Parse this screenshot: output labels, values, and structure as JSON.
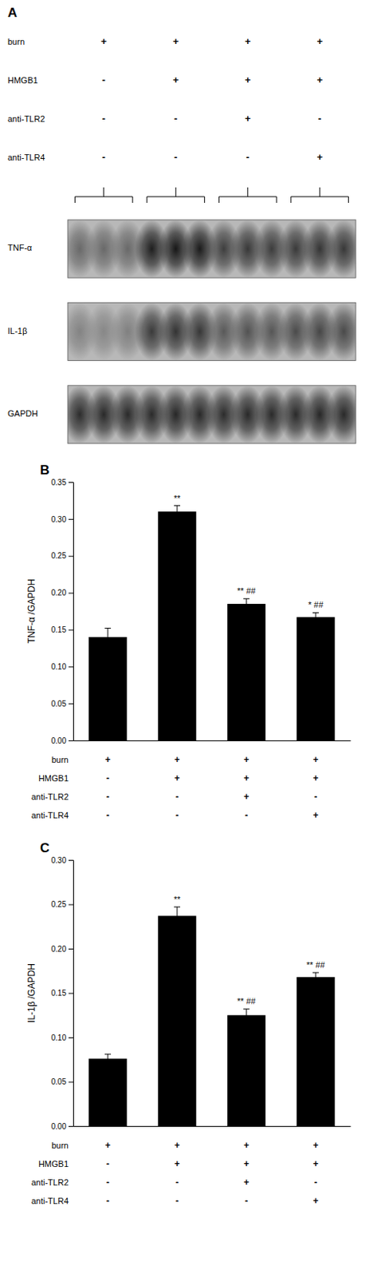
{
  "chart_data": [
    {
      "type": "heatmap",
      "title": "A",
      "rows": [
        "TNF-α",
        "IL-1β",
        "GAPDH"
      ],
      "cells": [
        [
          0.45,
          0.45,
          0.45,
          0.88,
          0.92,
          0.9,
          0.7,
          0.73,
          0.71,
          0.72,
          0.75,
          0.73
        ],
        [
          0.3,
          0.28,
          0.32,
          0.72,
          0.76,
          0.74,
          0.54,
          0.58,
          0.56,
          0.62,
          0.65,
          0.63
        ],
        [
          0.8,
          0.82,
          0.81,
          0.81,
          0.83,
          0.82,
          0.8,
          0.82,
          0.81,
          0.81,
          0.83,
          0.82
        ]
      ],
      "conditions": [
        {
          "name": "burn",
          "values": [
            "+",
            "+",
            "+",
            "+"
          ]
        },
        {
          "name": "HMGB1",
          "values": [
            "-",
            "+",
            "+",
            "+"
          ]
        },
        {
          "name": "anti-TLR2",
          "values": [
            "-",
            "-",
            "+",
            "-"
          ]
        },
        {
          "name": "anti-TLR4",
          "values": [
            "-",
            "-",
            "-",
            "+"
          ]
        }
      ]
    },
    {
      "type": "bar",
      "title": "B",
      "ylabel": "TNF-α /GAPDH",
      "categories": [
        null,
        null,
        null,
        null
      ],
      "values": [
        0.14,
        0.31,
        0.185,
        0.167
      ],
      "errors": [
        0.012,
        0.008,
        0.007,
        0.006
      ],
      "annotations": [
        null,
        "**",
        "** ##",
        "* ##"
      ],
      "ylim": [
        0.0,
        0.35
      ],
      "yticks": [
        {
          "value": 0,
          "label": "0.00"
        },
        0.05,
        {
          "value": 0.1,
          "label": "0.10"
        },
        0.15,
        {
          "value": 0.2,
          "label": "0.20"
        },
        0.25,
        {
          "value": 0.3,
          "label": "0.30"
        },
        0.35
      ],
      "color": "#000000",
      "grid": false,
      "conditions": [
        {
          "name": "burn",
          "values": [
            "+",
            "+",
            "+",
            "+"
          ]
        },
        {
          "name": "HMGB1",
          "values": [
            "-",
            "+",
            "+",
            "+"
          ]
        },
        {
          "name": "anti-TLR2",
          "values": [
            "-",
            "-",
            "+",
            "-"
          ]
        },
        {
          "name": "anti-TLR4",
          "values": [
            "-",
            "-",
            "-",
            "+"
          ]
        }
      ]
    },
    {
      "type": "bar",
      "title": "C",
      "ylabel": "IL-1β /GAPDH",
      "categories": [
        null,
        null,
        null,
        null
      ],
      "values": [
        0.076,
        0.237,
        0.125,
        0.168
      ],
      "errors": [
        0.005,
        0.01,
        0.007,
        0.005
      ],
      "annotations": [
        null,
        "**",
        "** ##",
        "** ##"
      ],
      "ylim": [
        0.0,
        0.3
      ],
      "yticks": [
        {
          "value": 0,
          "label": "0.00"
        },
        0.05,
        {
          "value": 0.1,
          "label": "0.10"
        },
        0.15,
        {
          "value": 0.2,
          "label": "0.20"
        },
        0.25,
        {
          "value": 0.3,
          "label": "0.30"
        }
      ],
      "color": "#000000",
      "grid": false,
      "conditions": [
        {
          "name": "burn",
          "values": [
            "+",
            "+",
            "+",
            "+"
          ]
        },
        {
          "name": "HMGB1",
          "values": [
            "-",
            "+",
            "+",
            "+"
          ]
        },
        {
          "name": "anti-TLR2",
          "values": [
            "-",
            "-",
            "+",
            "-"
          ]
        },
        {
          "name": "anti-TLR4",
          "values": [
            "-",
            "-",
            "-",
            "+"
          ]
        }
      ]
    }
  ]
}
